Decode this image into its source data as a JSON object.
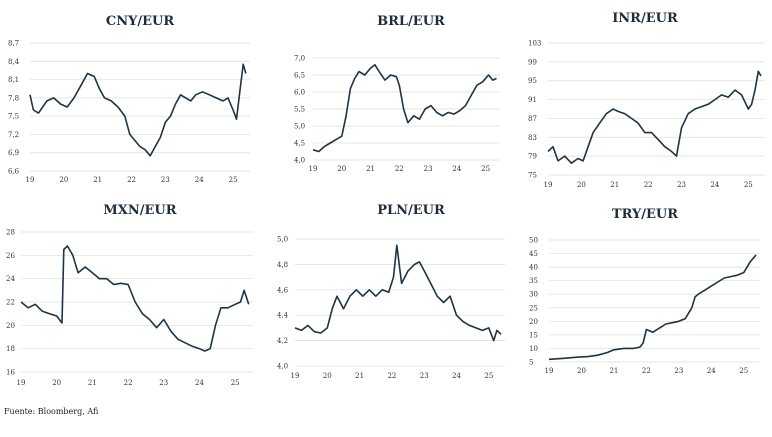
{
  "source": "Fuente: Bloomberg, Afi",
  "colors": {
    "line": "#1e3344",
    "grid": "#dcdcdc",
    "text": "#1f2d3a"
  },
  "chart_data": [
    {
      "type": "line",
      "title": "CNY/EUR",
      "x_ticks": [
        "19",
        "20",
        "21",
        "22",
        "23",
        "24",
        "25"
      ],
      "y_ticks": [
        "8,7",
        "8,4",
        "8,1",
        "7,8",
        "7,5",
        "7,2",
        "6,9",
        "6,6"
      ],
      "ylim": [
        6.6,
        8.7
      ],
      "grid": true,
      "x": [
        2019.0,
        2019.1,
        2019.25,
        2019.5,
        2019.7,
        2019.9,
        2020.1,
        2020.3,
        2020.5,
        2020.7,
        2020.9,
        2021.05,
        2021.2,
        2021.4,
        2021.6,
        2021.8,
        2021.95,
        2022.1,
        2022.25,
        2022.4,
        2022.55,
        2022.7,
        2022.85,
        2023.0,
        2023.15,
        2023.3,
        2023.45,
        2023.6,
        2023.75,
        2023.9,
        2024.1,
        2024.3,
        2024.5,
        2024.7,
        2024.85,
        2025.0,
        2025.1,
        2025.2,
        2025.3,
        2025.38
      ],
      "y": [
        7.85,
        7.6,
        7.55,
        7.75,
        7.8,
        7.7,
        7.65,
        7.8,
        8.0,
        8.2,
        8.15,
        7.95,
        7.8,
        7.75,
        7.65,
        7.5,
        7.2,
        7.1,
        7.0,
        6.95,
        6.85,
        7.0,
        7.15,
        7.4,
        7.5,
        7.7,
        7.85,
        7.8,
        7.75,
        7.85,
        7.9,
        7.85,
        7.8,
        7.75,
        7.8,
        7.6,
        7.45,
        7.9,
        8.35,
        8.2
      ]
    },
    {
      "type": "line",
      "title": "BRL/EUR",
      "x_ticks": [
        "19",
        "20",
        "21",
        "22",
        "23",
        "24",
        "25"
      ],
      "y_ticks": [
        "7,0",
        "6,5",
        "6,0",
        "5,5",
        "5,0",
        "4,5",
        "4,0"
      ],
      "ylim": [
        4.0,
        7.0
      ],
      "grid": true,
      "x": [
        2019.0,
        2019.2,
        2019.4,
        2019.6,
        2019.8,
        2020.0,
        2020.15,
        2020.3,
        2020.45,
        2020.6,
        2020.8,
        2021.0,
        2021.15,
        2021.3,
        2021.5,
        2021.7,
        2021.9,
        2022.0,
        2022.15,
        2022.3,
        2022.5,
        2022.7,
        2022.9,
        2023.1,
        2023.3,
        2023.5,
        2023.7,
        2023.9,
        2024.1,
        2024.3,
        2024.5,
        2024.7,
        2024.9,
        2025.1,
        2025.25,
        2025.38
      ],
      "y": [
        4.3,
        4.25,
        4.4,
        4.5,
        4.6,
        4.7,
        5.3,
        6.1,
        6.4,
        6.6,
        6.5,
        6.7,
        6.8,
        6.6,
        6.35,
        6.5,
        6.45,
        6.2,
        5.5,
        5.1,
        5.3,
        5.2,
        5.5,
        5.6,
        5.4,
        5.3,
        5.4,
        5.35,
        5.45,
        5.6,
        5.9,
        6.2,
        6.3,
        6.5,
        6.35,
        6.4
      ]
    },
    {
      "type": "line",
      "title": "INR/EUR",
      "x_ticks": [
        "19",
        "20",
        "21",
        "22",
        "23",
        "24",
        "25"
      ],
      "y_ticks": [
        "103",
        "99",
        "95",
        "91",
        "87",
        "83",
        "79",
        "75"
      ],
      "ylim": [
        75,
        103
      ],
      "grid": true,
      "x": [
        2019.0,
        2019.15,
        2019.3,
        2019.5,
        2019.7,
        2019.9,
        2020.05,
        2020.2,
        2020.35,
        2020.55,
        2020.75,
        2020.95,
        2021.1,
        2021.3,
        2021.5,
        2021.7,
        2021.9,
        2022.1,
        2022.3,
        2022.5,
        2022.7,
        2022.85,
        2023.0,
        2023.2,
        2023.4,
        2023.6,
        2023.8,
        2024.0,
        2024.2,
        2024.4,
        2024.6,
        2024.8,
        2025.0,
        2025.1,
        2025.2,
        2025.3,
        2025.38
      ],
      "y": [
        80,
        81,
        78,
        79,
        77.5,
        78.5,
        78,
        81,
        84,
        86,
        88,
        89,
        88.5,
        88,
        87,
        86,
        84,
        84,
        82.5,
        81,
        80,
        79,
        85,
        88,
        89,
        89.5,
        90,
        91,
        92,
        91.5,
        93,
        92,
        89,
        90,
        93,
        97,
        96
      ]
    },
    {
      "type": "line",
      "title": "MXN/EUR",
      "x_ticks": [
        "19",
        "20",
        "21",
        "22",
        "23",
        "24",
        "25"
      ],
      "y_ticks": [
        "28",
        "26",
        "24",
        "22",
        "20",
        "18",
        "16"
      ],
      "ylim": [
        16,
        28
      ],
      "grid": true,
      "x": [
        2019.0,
        2019.2,
        2019.4,
        2019.6,
        2019.8,
        2020.0,
        2020.15,
        2020.2,
        2020.3,
        2020.45,
        2020.6,
        2020.8,
        2021.0,
        2021.2,
        2021.4,
        2021.6,
        2021.8,
        2022.0,
        2022.2,
        2022.4,
        2022.6,
        2022.8,
        2023.0,
        2023.2,
        2023.4,
        2023.6,
        2023.8,
        2024.0,
        2024.15,
        2024.3,
        2024.45,
        2024.6,
        2024.8,
        2025.0,
        2025.15,
        2025.25,
        2025.38
      ],
      "y": [
        22,
        21.5,
        21.8,
        21.2,
        21,
        20.8,
        20.2,
        26.5,
        26.8,
        26,
        24.5,
        25,
        24.5,
        24,
        24,
        23.5,
        23.6,
        23.5,
        22,
        21,
        20.5,
        19.8,
        20.5,
        19.5,
        18.8,
        18.5,
        18.2,
        18,
        17.8,
        18,
        20,
        21.5,
        21.5,
        21.8,
        22,
        23,
        21.8
      ]
    },
    {
      "type": "line",
      "title": "PLN/EUR",
      "x_ticks": [
        "19",
        "20",
        "21",
        "22",
        "23",
        "24",
        "25"
      ],
      "y_ticks": [
        "5,0",
        "4,8",
        "4,6",
        "4,4",
        "4,2",
        "4,0"
      ],
      "ylim": [
        4.0,
        5.0
      ],
      "grid": true,
      "x": [
        2019.0,
        2019.2,
        2019.4,
        2019.6,
        2019.8,
        2020.0,
        2020.15,
        2020.3,
        2020.5,
        2020.7,
        2020.9,
        2021.1,
        2021.3,
        2021.5,
        2021.7,
        2021.9,
        2022.05,
        2022.15,
        2022.3,
        2022.5,
        2022.7,
        2022.85,
        2023.0,
        2023.2,
        2023.4,
        2023.6,
        2023.8,
        2024.0,
        2024.2,
        2024.4,
        2024.6,
        2024.8,
        2025.0,
        2025.15,
        2025.25,
        2025.38
      ],
      "y": [
        4.3,
        4.28,
        4.32,
        4.27,
        4.26,
        4.3,
        4.45,
        4.55,
        4.45,
        4.55,
        4.6,
        4.55,
        4.6,
        4.55,
        4.6,
        4.58,
        4.7,
        4.95,
        4.65,
        4.75,
        4.8,
        4.82,
        4.75,
        4.65,
        4.55,
        4.5,
        4.55,
        4.4,
        4.35,
        4.32,
        4.3,
        4.28,
        4.3,
        4.2,
        4.28,
        4.25
      ]
    },
    {
      "type": "line",
      "title": "TRY/EUR",
      "x_ticks": [
        "19",
        "20",
        "21",
        "22",
        "23",
        "24",
        "25"
      ],
      "y_ticks": [
        "50",
        "45",
        "40",
        "35",
        "30",
        "25",
        "20",
        "15",
        "10",
        "5"
      ],
      "ylim": [
        5,
        50
      ],
      "grid": true,
      "x": [
        2019.0,
        2019.3,
        2019.6,
        2019.9,
        2020.2,
        2020.5,
        2020.8,
        2021.0,
        2021.3,
        2021.6,
        2021.8,
        2021.9,
        2022.0,
        2022.2,
        2022.4,
        2022.6,
        2022.8,
        2023.0,
        2023.2,
        2023.4,
        2023.5,
        2023.6,
        2023.8,
        2024.0,
        2024.2,
        2024.4,
        2024.6,
        2024.8,
        2025.0,
        2025.2,
        2025.38
      ],
      "y": [
        6,
        6.2,
        6.5,
        6.8,
        7,
        7.5,
        8.5,
        9.5,
        10,
        10,
        10.5,
        12,
        17,
        16,
        17.5,
        19,
        19.5,
        20,
        21,
        25,
        29,
        30,
        31.5,
        33,
        34.5,
        36,
        36.5,
        37,
        38,
        42,
        44.5
      ]
    }
  ]
}
